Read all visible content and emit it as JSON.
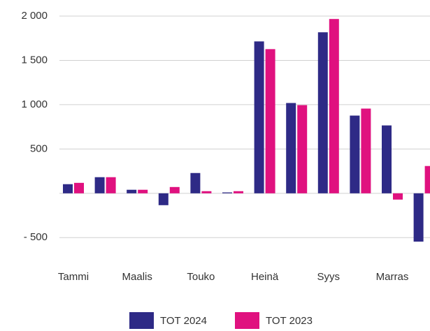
{
  "chart_data": {
    "type": "bar",
    "categories": [
      "Tammi",
      null,
      "Maalis",
      null,
      "Touko",
      null,
      "Heinä",
      null,
      "Syys",
      null,
      "Marras",
      null
    ],
    "series": [
      {
        "name": "TOT 2024",
        "color": "#2e2a86",
        "values": [
          103,
          182,
          40,
          -134,
          229,
          10,
          1714,
          1019,
          1817,
          877,
          766,
          -545
        ]
      },
      {
        "name": "TOT 2023",
        "color": "#e0117f",
        "values": [
          118,
          182,
          40,
          71,
          24,
          24,
          1627,
          995,
          1967,
          956,
          -71,
          308
        ]
      }
    ],
    "ylim": [
      -750,
      2000
    ],
    "yticks": [
      {
        "value": -500,
        "label": "- 500"
      },
      500,
      {
        "value": 1000,
        "label": "1 000"
      },
      {
        "value": 1500,
        "label": "1 500"
      },
      {
        "value": 2000,
        "label": "2 000"
      }
    ],
    "grid": true,
    "legend": "bottom"
  }
}
